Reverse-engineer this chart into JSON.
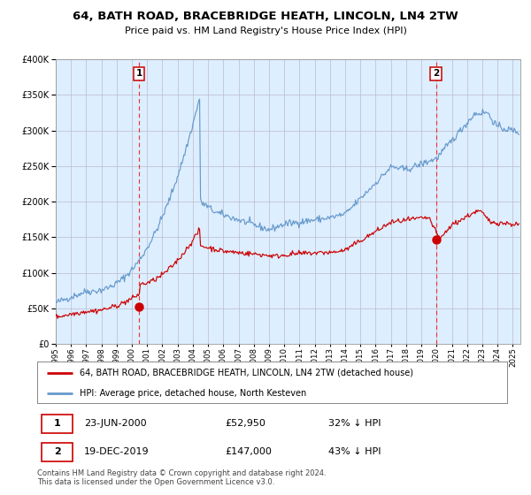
{
  "title": "64, BATH ROAD, BRACEBRIDGE HEATH, LINCOLN, LN4 2TW",
  "subtitle": "Price paid vs. HM Land Registry's House Price Index (HPI)",
  "legend_line1": "64, BATH ROAD, BRACEBRIDGE HEATH, LINCOLN, LN4 2TW (detached house)",
  "legend_line2": "HPI: Average price, detached house, North Kesteven",
  "annotation1_date": "23-JUN-2000",
  "annotation1_price": "£52,950",
  "annotation1_pct": "32% ↓ HPI",
  "annotation2_date": "19-DEC-2019",
  "annotation2_price": "£147,000",
  "annotation2_pct": "43% ↓ HPI",
  "footer": "Contains HM Land Registry data © Crown copyright and database right 2024.\nThis data is licensed under the Open Government Licence v3.0.",
  "red_color": "#cc0000",
  "blue_color": "#6699cc",
  "bg_color": "#ddeeff",
  "vline_color": "#ee3333",
  "grid_color": "#bbbbcc",
  "ylim": [
    0,
    400000
  ],
  "xlim_start": 1995.0,
  "xlim_end": 2025.5,
  "marker1_x": 2000.47,
  "marker1_y": 52950,
  "marker2_x": 2019.96,
  "marker2_y": 147000
}
